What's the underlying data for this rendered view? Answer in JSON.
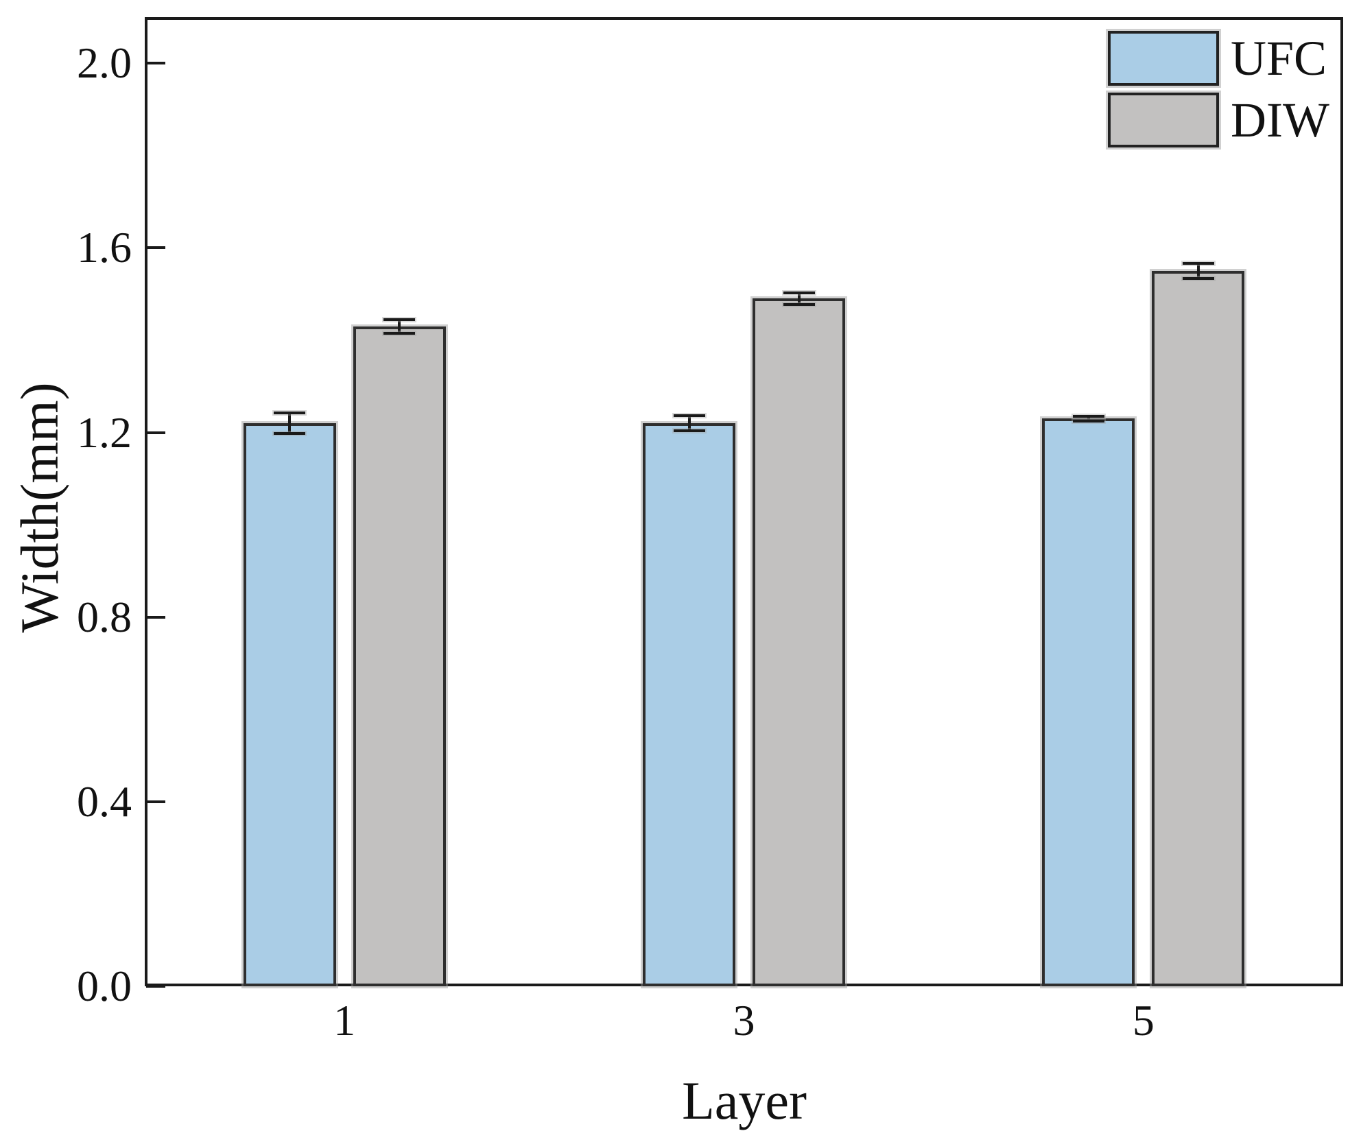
{
  "chart_data": {
    "type": "bar",
    "title": "",
    "xlabel": "Layer",
    "ylabel": "Width(mm)",
    "categories": [
      "1",
      "3",
      "5"
    ],
    "series": [
      {
        "name": "UFC",
        "color": "#aacde6",
        "values": [
          1.22,
          1.22,
          1.23
        ],
        "errors": [
          0.022,
          0.016,
          0.005
        ]
      },
      {
        "name": "DIW",
        "color": "#c2c1c0",
        "values": [
          1.43,
          1.49,
          1.55
        ],
        "errors": [
          0.015,
          0.012,
          0.016
        ]
      }
    ],
    "y_axis": {
      "min": 0.0,
      "max_visible_tick": 2.0,
      "axis_top": 2.1,
      "tick_step": 0.4,
      "ticks": [
        0.0,
        0.4,
        0.8,
        1.2,
        1.6,
        2.0
      ],
      "tick_labels": [
        "0.0",
        "0.4",
        "0.8",
        "1.2",
        "1.6",
        "2.0"
      ]
    },
    "legend": {
      "position": "top-right",
      "entries": [
        "UFC",
        "DIW"
      ]
    },
    "grid": false,
    "error_bars": true,
    "axis_color": "#1a1a1a",
    "background_color": "#ffffff"
  }
}
